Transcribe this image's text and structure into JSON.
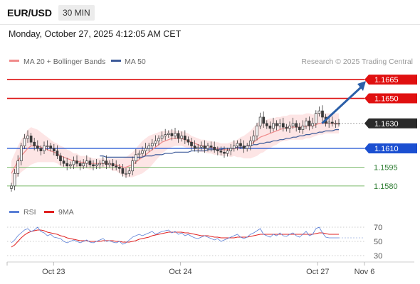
{
  "header": {
    "symbol": "EUR/USD",
    "timeframe": "30 MIN",
    "datetime": "Monday, October 27, 2025 4:12:05 AM CET"
  },
  "legend": {
    "ma20_bb": "MA 20 + Bollinger Bands",
    "ma50": "MA 50",
    "copyright": "Research © 2025 Trading Central"
  },
  "colors": {
    "resistance": "#dd1111",
    "support": "#1b4fd1",
    "support_green": "#7dbb6e",
    "candle": "#3a3a3a",
    "ma20": "#f08a8a",
    "ma50": "#3d5a99",
    "bb_fill": "#fde0e0",
    "arrow": "#2b5fa8",
    "rsi": "#5b7fd6",
    "rsi_ma": "#e02020"
  },
  "chart_data": {
    "type": "line",
    "title": "EUR/USD",
    "price_levels": [
      {
        "label": "1.1665",
        "value": 1.1665,
        "kind": "resistance",
        "style": "red-badge"
      },
      {
        "label": "1.1650",
        "value": 1.165,
        "kind": "resistance",
        "style": "red-badge"
      },
      {
        "label": "1.1630",
        "value": 1.163,
        "kind": "last-price",
        "style": "dark-badge"
      },
      {
        "label": "1.1610",
        "value": 1.161,
        "kind": "pivot",
        "style": "blue-badge"
      },
      {
        "label": "1.1595",
        "value": 1.1595,
        "kind": "support",
        "style": "green-text"
      },
      {
        "label": "1.1580",
        "value": 1.158,
        "kind": "support",
        "style": "green-text"
      }
    ],
    "ylim": [
      1.1572,
      1.1673
    ],
    "x_ticks": [
      "Oct 23",
      "Oct 24",
      "Oct 27",
      "Nov 6"
    ],
    "x_tick_index": [
      12,
      48,
      87,
      100
    ],
    "x_count": 101,
    "price_close": [
      1.158,
      1.159,
      1.16,
      1.1612,
      1.1618,
      1.162,
      1.1615,
      1.1612,
      1.161,
      1.1608,
      1.1612,
      1.1612,
      1.161,
      1.1608,
      1.1604,
      1.16,
      1.1598,
      1.1596,
      1.1597,
      1.16,
      1.1598,
      1.1596,
      1.1598,
      1.16,
      1.1597,
      1.1596,
      1.1597,
      1.1598,
      1.16,
      1.1597,
      1.1598,
      1.1596,
      1.1595,
      1.1594,
      1.159,
      1.159,
      1.1592,
      1.16,
      1.1605,
      1.1606,
      1.1608,
      1.161,
      1.1612,
      1.1614,
      1.1616,
      1.1618,
      1.162,
      1.1621,
      1.1622,
      1.162,
      1.1622,
      1.1618,
      1.162,
      1.1617,
      1.1615,
      1.1612,
      1.161,
      1.1611,
      1.1612,
      1.161,
      1.1612,
      1.1611,
      1.1609,
      1.1608,
      1.1607,
      1.1606,
      1.1608,
      1.161,
      1.1612,
      1.1614,
      1.1612,
      1.161,
      1.1612,
      1.1616,
      1.162,
      1.1628,
      1.1635,
      1.163,
      1.1628,
      1.1626,
      1.163,
      1.1628,
      1.163,
      1.1627,
      1.1626,
      1.1628,
      1.163,
      1.1627,
      1.1625,
      1.1628,
      1.1632,
      1.1628,
      1.163,
      1.1638,
      1.164,
      1.1635,
      1.163,
      1.1631,
      1.163,
      1.163,
      1.163
    ],
    "ma20": [
      1.159,
      1.1595,
      1.16,
      1.1604,
      1.1607,
      1.161,
      1.1612,
      1.1612,
      1.1612,
      1.1611,
      1.161,
      1.1609,
      1.1608,
      1.1607,
      1.1606,
      1.1604,
      1.1603,
      1.1602,
      1.1601,
      1.16,
      1.16,
      1.1599,
      1.1599,
      1.1599,
      1.1598,
      1.1598,
      1.1598,
      1.1598,
      1.1598,
      1.1598,
      1.1598,
      1.1597,
      1.1597,
      1.1596,
      1.1595,
      1.1595,
      1.1596,
      1.1597,
      1.1599,
      1.1601,
      1.1603,
      1.1605,
      1.1607,
      1.1609,
      1.1611,
      1.1613,
      1.1615,
      1.1616,
      1.1617,
      1.1618,
      1.1618,
      1.1618,
      1.1618,
      1.1617,
      1.1616,
      1.1615,
      1.1614,
      1.1613,
      1.1612,
      1.1612,
      1.1611,
      1.1611,
      1.161,
      1.161,
      1.1609,
      1.1609,
      1.1609,
      1.1609,
      1.161,
      1.161,
      1.1611,
      1.1611,
      1.1612,
      1.1613,
      1.1615,
      1.1617,
      1.1619,
      1.162,
      1.1621,
      1.1622,
      1.1623,
      1.1624,
      1.1625,
      1.1626,
      1.1626,
      1.1627,
      1.1627,
      1.1627,
      1.1627,
      1.1627,
      1.1628,
      1.1628,
      1.1628,
      1.1629,
      1.163,
      1.163,
      1.163,
      1.163,
      1.163,
      1.163,
      1.163
    ],
    "ma50": [
      null,
      null,
      null,
      null,
      null,
      null,
      null,
      null,
      null,
      null,
      null,
      null,
      null,
      null,
      null,
      null,
      null,
      null,
      null,
      null,
      null,
      null,
      null,
      null,
      null,
      null,
      null,
      1.1604,
      1.1604,
      1.1603,
      1.1603,
      1.1603,
      1.1603,
      1.1603,
      1.1603,
      1.1603,
      1.1603,
      1.1603,
      1.1603,
      1.1603,
      1.1603,
      1.1604,
      1.1604,
      1.1604,
      1.1605,
      1.1605,
      1.1605,
      1.1606,
      1.1606,
      1.1606,
      1.1607,
      1.1607,
      1.1607,
      1.1607,
      1.1607,
      1.1608,
      1.1608,
      1.1608,
      1.1608,
      1.1608,
      1.1609,
      1.1609,
      1.1609,
      1.1609,
      1.1609,
      1.161,
      1.161,
      1.161,
      1.161,
      1.1611,
      1.1611,
      1.1611,
      1.1612,
      1.1612,
      1.1613,
      1.1613,
      1.1614,
      1.1614,
      1.1615,
      1.1615,
      1.1616,
      1.1616,
      1.1617,
      1.1617,
      1.1618,
      1.1618,
      1.1619,
      1.1619,
      1.162,
      1.162,
      1.1621,
      1.1621,
      1.1622,
      1.1622,
      1.1623,
      1.1623,
      1.1624,
      1.1624,
      1.1624,
      1.1625,
      1.1625
    ],
    "bb_half_width": [
      0.001,
      0.0011,
      0.0012,
      0.0013,
      0.0014,
      0.0015,
      0.0015,
      0.0014,
      0.0013,
      0.0012,
      0.0011,
      0.001,
      0.0009,
      0.0008,
      0.0008,
      0.0008,
      0.0008,
      0.0007,
      0.0007,
      0.0006,
      0.0006,
      0.0005,
      0.0005,
      0.0005,
      0.0005,
      0.0004,
      0.0004,
      0.0004,
      0.0004,
      0.0004,
      0.0004,
      0.0005,
      0.0005,
      0.0006,
      0.0007,
      0.0008,
      0.0009,
      0.001,
      0.0011,
      0.0012,
      0.0013,
      0.0013,
      0.0013,
      0.0012,
      0.0011,
      0.001,
      0.0009,
      0.0008,
      0.0007,
      0.0007,
      0.0006,
      0.0006,
      0.0006,
      0.0006,
      0.0006,
      0.0005,
      0.0005,
      0.0005,
      0.0005,
      0.0005,
      0.0005,
      0.0005,
      0.0005,
      0.0005,
      0.0005,
      0.0005,
      0.0005,
      0.0006,
      0.0006,
      0.0007,
      0.0008,
      0.0009,
      0.001,
      0.0011,
      0.0012,
      0.0013,
      0.0013,
      0.0013,
      0.0012,
      0.0012,
      0.0011,
      0.0011,
      0.001,
      0.001,
      0.001,
      0.001,
      0.001,
      0.001,
      0.001,
      0.001,
      0.001,
      0.001,
      0.0009,
      0.0009,
      0.0009,
      0.0009,
      0.0008,
      0.0008,
      0.0008,
      0.0008,
      0.0008
    ],
    "projection": {
      "from_index": 94,
      "from_value": 1.163,
      "to_value": 1.1665
    },
    "rsi": {
      "name": "RSI",
      "ma_name": "9MA",
      "levels": [
        70,
        50,
        30
      ],
      "ylim": [
        22,
        78
      ],
      "values": [
        48,
        52,
        58,
        62,
        66,
        68,
        64,
        66,
        70,
        64,
        62,
        58,
        60,
        56,
        55,
        54,
        50,
        48,
        50,
        52,
        50,
        48,
        50,
        52,
        49,
        48,
        50,
        52,
        54,
        50,
        51,
        49,
        48,
        50,
        46,
        48,
        52,
        56,
        58,
        60,
        58,
        60,
        62,
        64,
        60,
        62,
        64,
        65,
        66,
        62,
        64,
        60,
        62,
        58,
        60,
        57,
        55,
        54,
        56,
        58,
        56,
        54,
        52,
        54,
        50,
        52,
        54,
        56,
        58,
        60,
        56,
        54,
        56,
        60,
        62,
        65,
        68,
        60,
        58,
        56,
        60,
        58,
        62,
        58,
        57,
        60,
        62,
        58,
        56,
        60,
        64,
        58,
        60,
        68,
        70,
        62,
        56,
        55,
        55,
        55,
        55
      ],
      "ma_values": [
        42,
        45,
        50,
        55,
        59,
        62,
        64,
        65,
        66,
        66,
        65,
        63,
        62,
        61,
        60,
        58,
        57,
        55,
        54,
        53,
        52,
        51,
        51,
        51,
        50,
        50,
        50,
        50,
        51,
        51,
        51,
        51,
        50,
        50,
        49,
        49,
        49,
        50,
        51,
        53,
        54,
        55,
        56,
        58,
        59,
        60,
        61,
        62,
        63,
        63,
        63,
        63,
        63,
        62,
        62,
        61,
        60,
        59,
        58,
        58,
        58,
        57,
        56,
        56,
        55,
        55,
        55,
        55,
        55,
        56,
        56,
        56,
        56,
        57,
        58,
        59,
        60,
        60,
        60,
        60,
        60,
        60,
        60,
        60,
        60,
        60,
        60,
        60,
        60,
        60,
        60,
        60,
        60,
        61,
        62,
        62,
        61,
        60,
        60,
        60,
        60
      ]
    }
  }
}
